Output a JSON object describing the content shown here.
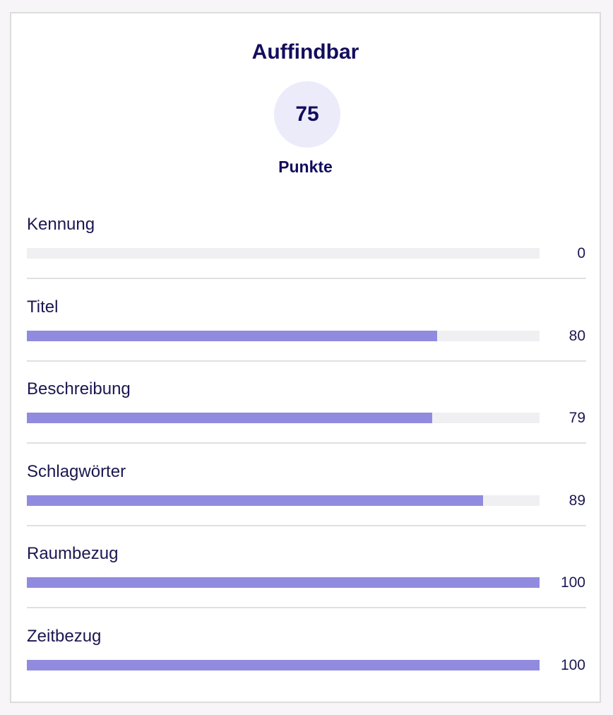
{
  "title": "Auffindbar",
  "score": "75",
  "score_unit": "Punkte",
  "colors": {
    "bar_fill": "#918be0",
    "bar_track": "#f0f0f2",
    "text": "#120d5c",
    "score_circle": "#ecebfa"
  },
  "items": [
    {
      "label": "Kennung",
      "value": "0",
      "percent": 0
    },
    {
      "label": "Titel",
      "value": "80",
      "percent": 80
    },
    {
      "label": "Beschreibung",
      "value": "79",
      "percent": 79
    },
    {
      "label": "Schlagwörter",
      "value": "89",
      "percent": 89
    },
    {
      "label": "Raumbezug",
      "value": "100",
      "percent": 100
    },
    {
      "label": "Zeitbezug",
      "value": "100",
      "percent": 100
    }
  ]
}
